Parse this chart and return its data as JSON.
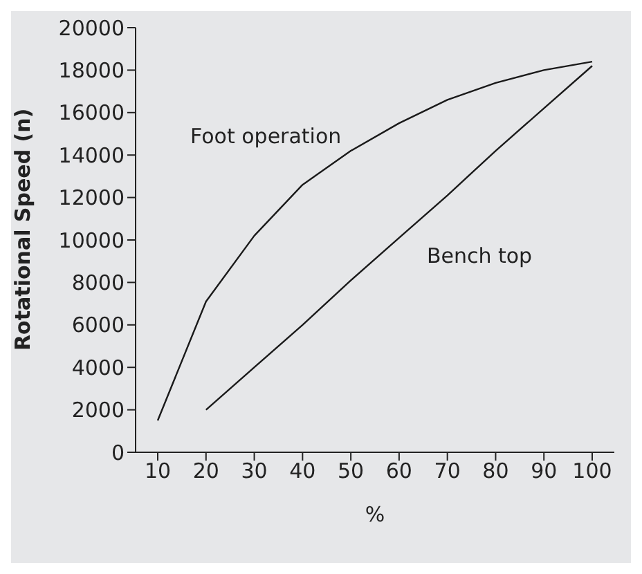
{
  "chart_data": {
    "type": "line",
    "xlabel": "%",
    "ylabel": "Rotational Speed (n)",
    "categories": [
      "10",
      "20",
      "30",
      "40",
      "50",
      "60",
      "70",
      "80",
      "90",
      "100"
    ],
    "series": [
      {
        "name": "Foot operation",
        "color": "#1a1a1a",
        "values": [
          1500,
          7100,
          10200,
          12600,
          14200,
          15500,
          16600,
          17400,
          18000,
          18400
        ]
      },
      {
        "name": "Bench top",
        "color": "#1a1a1a",
        "values": [
          null,
          2000,
          4000,
          6000,
          8100,
          10100,
          12100,
          14200,
          16200,
          18200
        ]
      }
    ],
    "ylim": [
      0,
      20000
    ],
    "yticks": [
      0,
      2000,
      4000,
      6000,
      8000,
      10000,
      12000,
      14000,
      16000,
      18000,
      20000
    ],
    "grid": false,
    "legend": false,
    "marker": "none",
    "line_style": "solid"
  }
}
